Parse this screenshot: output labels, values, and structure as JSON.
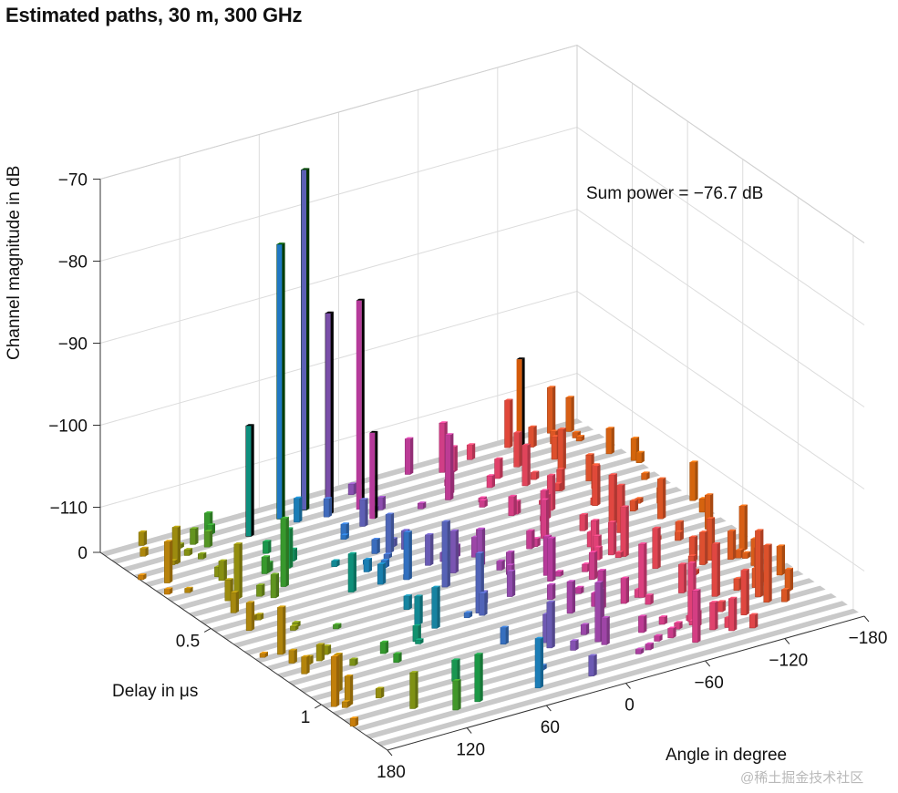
{
  "title": "Estimated paths, 30 m, 300 GHz",
  "watermark": "@稀土掘金技术社区",
  "chart_data": {
    "type": "bar3d",
    "title": "Estimated paths, 30 m, 300 GHz",
    "zlabel": "Channel magnitude in dB",
    "ylabel": "Delay in μs",
    "xlabel": "Angle in degree",
    "annotation": "Sum power = −76.7 dB",
    "zticks": [
      {
        "value": 0,
        "label": "0"
      },
      {
        "value": -110,
        "label": "−110"
      },
      {
        "value": -100,
        "label": "−100"
      },
      {
        "value": -90,
        "label": "−90"
      },
      {
        "value": -80,
        "label": "−80"
      },
      {
        "value": -70,
        "label": "−70"
      }
    ],
    "delay_ticks": [
      {
        "value": 0.5,
        "label": "0.5"
      },
      {
        "value": 1,
        "label": "1"
      }
    ],
    "angle_ticks": [
      {
        "value": 180,
        "label": "180"
      },
      {
        "value": 120,
        "label": "120"
      },
      {
        "value": 60,
        "label": "60"
      },
      {
        "value": 0,
        "label": "0"
      },
      {
        "value": -60,
        "label": "−60"
      },
      {
        "value": -120,
        "label": "−120"
      },
      {
        "value": -180,
        "label": "−180"
      }
    ],
    "grid": true,
    "major_paths": [
      {
        "angle": 88,
        "delay": 0.12,
        "db": -102,
        "color": "#0e8f7e"
      },
      {
        "angle": 58,
        "delay": 0.08,
        "db": -82,
        "color": "#1f78c4"
      },
      {
        "angle": 38,
        "delay": 0.07,
        "db": -74,
        "color": "#5c60b5"
      },
      {
        "angle": 28,
        "delay": 0.12,
        "db": -91,
        "color": "#7a4fa8"
      },
      {
        "angle": 8,
        "delay": 0.14,
        "db": -90,
        "color": "#b53a9a"
      },
      {
        "angle": 8,
        "delay": 0.2,
        "db": -105,
        "color": "#b53a9a"
      },
      {
        "angle": -128,
        "delay": 0.05,
        "db": -105,
        "color": "#d45a0a"
      }
    ]
  }
}
